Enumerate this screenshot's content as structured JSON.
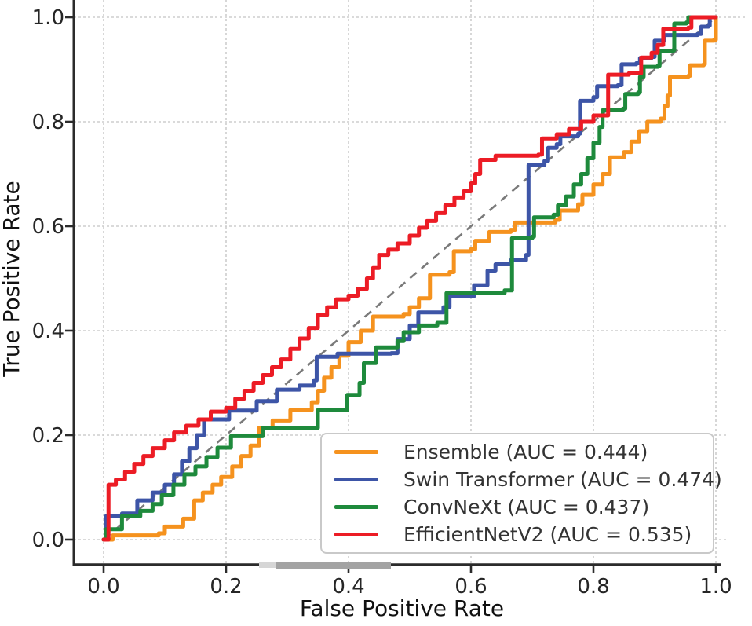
{
  "chart_data": {
    "type": "line",
    "subtype": "roc-step-curves",
    "title": "",
    "xlabel": "False Positive Rate",
    "ylabel": "True Positive Rate",
    "xtick_labels": [
      "0.0",
      "0.2",
      "0.4",
      "0.6",
      "0.8",
      "1.0"
    ],
    "ytick_labels": [
      "0.0",
      "0.2",
      "0.4",
      "0.6",
      "0.8",
      "1.0"
    ],
    "xtick_values": [
      0.0,
      0.2,
      0.4,
      0.6,
      0.8,
      1.0
    ],
    "ytick_values": [
      0.0,
      0.2,
      0.4,
      0.6,
      0.8,
      1.0
    ],
    "xlim": [
      -0.05,
      1.06
    ],
    "ylim": [
      -0.05,
      1.06
    ],
    "grid": true,
    "grid_style": "dashed",
    "legend_position": "lower right",
    "diagonal_reference": {
      "from": [
        0,
        0
      ],
      "to": [
        1,
        1
      ],
      "style": "dashed",
      "color": "#7a7a7a"
    },
    "colors": {
      "grid": "#cdcdcd",
      "axis": "#2b2b2b",
      "text": "#262626",
      "background": "#ffffff",
      "artifact_bar": "#a3a3a3",
      "artifact_bar_light": "#d6d6d6"
    },
    "series": [
      {
        "name": "Ensemble",
        "auc": "0.444",
        "label": "Ensemble (AUC = 0.444)",
        "color": "#F5921E",
        "points": [
          [
            0,
            0
          ],
          [
            0.015,
            0.008
          ],
          [
            0.09,
            0.012
          ],
          [
            0.1,
            0.025
          ],
          [
            0.13,
            0.04
          ],
          [
            0.148,
            0.075
          ],
          [
            0.162,
            0.09
          ],
          [
            0.178,
            0.105
          ],
          [
            0.192,
            0.12
          ],
          [
            0.21,
            0.14
          ],
          [
            0.225,
            0.16
          ],
          [
            0.24,
            0.18
          ],
          [
            0.254,
            0.214
          ],
          [
            0.276,
            0.228
          ],
          [
            0.305,
            0.248
          ],
          [
            0.34,
            0.263
          ],
          [
            0.35,
            0.285
          ],
          [
            0.36,
            0.31
          ],
          [
            0.372,
            0.33
          ],
          [
            0.385,
            0.352
          ],
          [
            0.4,
            0.378
          ],
          [
            0.42,
            0.4
          ],
          [
            0.44,
            0.427
          ],
          [
            0.49,
            0.432
          ],
          [
            0.5,
            0.445
          ],
          [
            0.515,
            0.462
          ],
          [
            0.533,
            0.507
          ],
          [
            0.565,
            0.512
          ],
          [
            0.572,
            0.552
          ],
          [
            0.6,
            0.556
          ],
          [
            0.607,
            0.572
          ],
          [
            0.63,
            0.589
          ],
          [
            0.665,
            0.593
          ],
          [
            0.672,
            0.607
          ],
          [
            0.738,
            0.612
          ],
          [
            0.745,
            0.63
          ],
          [
            0.775,
            0.642
          ],
          [
            0.782,
            0.66
          ],
          [
            0.8,
            0.68
          ],
          [
            0.815,
            0.7
          ],
          [
            0.827,
            0.732
          ],
          [
            0.85,
            0.742
          ],
          [
            0.862,
            0.762
          ],
          [
            0.875,
            0.782
          ],
          [
            0.888,
            0.8
          ],
          [
            0.91,
            0.806
          ],
          [
            0.916,
            0.83
          ],
          [
            0.921,
            0.85
          ],
          [
            0.925,
            0.886
          ],
          [
            0.955,
            0.888
          ],
          [
            0.958,
            0.908
          ],
          [
            0.98,
            0.91
          ],
          [
            0.982,
            0.955
          ],
          [
            0.997,
            0.957
          ],
          [
            1,
            1
          ]
        ]
      },
      {
        "name": "Swin Transformer",
        "auc": "0.474",
        "label": "Swin Transformer (AUC = 0.474)",
        "color": "#3D55A7",
        "points": [
          [
            0,
            0
          ],
          [
            0.004,
            0.045
          ],
          [
            0.03,
            0.05
          ],
          [
            0.055,
            0.075
          ],
          [
            0.08,
            0.09
          ],
          [
            0.1,
            0.105
          ],
          [
            0.115,
            0.125
          ],
          [
            0.128,
            0.15
          ],
          [
            0.14,
            0.175
          ],
          [
            0.152,
            0.2
          ],
          [
            0.164,
            0.23
          ],
          [
            0.205,
            0.247
          ],
          [
            0.25,
            0.265
          ],
          [
            0.283,
            0.287
          ],
          [
            0.32,
            0.295
          ],
          [
            0.344,
            0.305
          ],
          [
            0.348,
            0.35
          ],
          [
            0.382,
            0.356
          ],
          [
            0.47,
            0.357
          ],
          [
            0.48,
            0.384
          ],
          [
            0.5,
            0.41
          ],
          [
            0.514,
            0.435
          ],
          [
            0.555,
            0.445
          ],
          [
            0.565,
            0.466
          ],
          [
            0.605,
            0.487
          ],
          [
            0.627,
            0.515
          ],
          [
            0.64,
            0.527
          ],
          [
            0.665,
            0.535
          ],
          [
            0.69,
            0.545
          ],
          [
            0.694,
            0.717
          ],
          [
            0.72,
            0.725
          ],
          [
            0.726,
            0.75
          ],
          [
            0.74,
            0.757
          ],
          [
            0.746,
            0.772
          ],
          [
            0.775,
            0.777
          ],
          [
            0.778,
            0.84
          ],
          [
            0.8,
            0.847
          ],
          [
            0.806,
            0.868
          ],
          [
            0.84,
            0.87
          ],
          [
            0.846,
            0.91
          ],
          [
            0.87,
            0.912
          ],
          [
            0.876,
            0.922
          ],
          [
            0.895,
            0.924
          ],
          [
            0.9,
            0.955
          ],
          [
            0.916,
            0.966
          ],
          [
            0.97,
            0.968
          ],
          [
            0.976,
            0.982
          ],
          [
            0.988,
            0.984
          ],
          [
            0.99,
            1.0
          ],
          [
            1,
            1
          ]
        ]
      },
      {
        "name": "ConvNeXt",
        "auc": "0.437",
        "label": "ConvNeXt (AUC = 0.437)",
        "color": "#1E8A3C",
        "points": [
          [
            0,
            0
          ],
          [
            0.004,
            0.02
          ],
          [
            0.03,
            0.045
          ],
          [
            0.06,
            0.055
          ],
          [
            0.08,
            0.068
          ],
          [
            0.095,
            0.085
          ],
          [
            0.114,
            0.105
          ],
          [
            0.132,
            0.125
          ],
          [
            0.15,
            0.14
          ],
          [
            0.168,
            0.158
          ],
          [
            0.186,
            0.176
          ],
          [
            0.208,
            0.198
          ],
          [
            0.26,
            0.214
          ],
          [
            0.35,
            0.248
          ],
          [
            0.398,
            0.277
          ],
          [
            0.418,
            0.3
          ],
          [
            0.425,
            0.338
          ],
          [
            0.445,
            0.368
          ],
          [
            0.48,
            0.38
          ],
          [
            0.49,
            0.397
          ],
          [
            0.515,
            0.41
          ],
          [
            0.545,
            0.415
          ],
          [
            0.56,
            0.472
          ],
          [
            0.655,
            0.477
          ],
          [
            0.667,
            0.577
          ],
          [
            0.7,
            0.58
          ],
          [
            0.703,
            0.617
          ],
          [
            0.735,
            0.622
          ],
          [
            0.742,
            0.64
          ],
          [
            0.755,
            0.657
          ],
          [
            0.768,
            0.68
          ],
          [
            0.78,
            0.7
          ],
          [
            0.79,
            0.73
          ],
          [
            0.8,
            0.76
          ],
          [
            0.81,
            0.79
          ],
          [
            0.815,
            0.822
          ],
          [
            0.848,
            0.825
          ],
          [
            0.852,
            0.853
          ],
          [
            0.873,
            0.856
          ],
          [
            0.876,
            0.886
          ],
          [
            0.882,
            0.905
          ],
          [
            0.905,
            0.907
          ],
          [
            0.908,
            0.935
          ],
          [
            0.93,
            0.937
          ],
          [
            0.932,
            0.988
          ],
          [
            0.952,
            0.99
          ],
          [
            0.955,
            1.0
          ],
          [
            1,
            1
          ]
        ]
      },
      {
        "name": "EfficientNetV2",
        "auc": "0.535",
        "label": "EfficientNetV2 (AUC = 0.535)",
        "color": "#EC1C25",
        "points": [
          [
            0,
            0
          ],
          [
            0.008,
            0.105
          ],
          [
            0.02,
            0.115
          ],
          [
            0.035,
            0.13
          ],
          [
            0.05,
            0.145
          ],
          [
            0.065,
            0.16
          ],
          [
            0.08,
            0.175
          ],
          [
            0.1,
            0.19
          ],
          [
            0.115,
            0.205
          ],
          [
            0.135,
            0.218
          ],
          [
            0.155,
            0.23
          ],
          [
            0.175,
            0.245
          ],
          [
            0.2,
            0.252
          ],
          [
            0.215,
            0.27
          ],
          [
            0.23,
            0.285
          ],
          [
            0.245,
            0.3
          ],
          [
            0.26,
            0.315
          ],
          [
            0.275,
            0.33
          ],
          [
            0.29,
            0.345
          ],
          [
            0.305,
            0.365
          ],
          [
            0.32,
            0.385
          ],
          [
            0.335,
            0.405
          ],
          [
            0.35,
            0.43
          ],
          [
            0.365,
            0.445
          ],
          [
            0.38,
            0.46
          ],
          [
            0.4,
            0.467
          ],
          [
            0.415,
            0.48
          ],
          [
            0.43,
            0.5
          ],
          [
            0.44,
            0.52
          ],
          [
            0.45,
            0.545
          ],
          [
            0.465,
            0.555
          ],
          [
            0.48,
            0.567
          ],
          [
            0.5,
            0.582
          ],
          [
            0.515,
            0.597
          ],
          [
            0.528,
            0.61
          ],
          [
            0.543,
            0.625
          ],
          [
            0.558,
            0.64
          ],
          [
            0.573,
            0.655
          ],
          [
            0.588,
            0.667
          ],
          [
            0.6,
            0.682
          ],
          [
            0.607,
            0.7
          ],
          [
            0.615,
            0.727
          ],
          [
            0.64,
            0.735
          ],
          [
            0.71,
            0.737
          ],
          [
            0.716,
            0.768
          ],
          [
            0.74,
            0.776
          ],
          [
            0.76,
            0.786
          ],
          [
            0.78,
            0.8
          ],
          [
            0.8,
            0.812
          ],
          [
            0.824,
            0.89
          ],
          [
            0.858,
            0.893
          ],
          [
            0.878,
            0.923
          ],
          [
            0.895,
            0.932
          ],
          [
            0.905,
            0.947
          ],
          [
            0.914,
            0.978
          ],
          [
            0.955,
            0.98
          ],
          [
            0.96,
            1.0
          ],
          [
            1,
            1
          ]
        ]
      }
    ]
  }
}
